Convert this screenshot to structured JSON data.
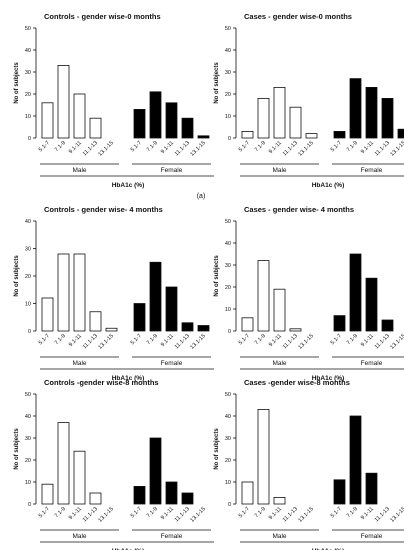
{
  "figure": {
    "panel_label": "(a)"
  },
  "colors": {
    "male": "#ffffff",
    "female": "#000000",
    "stroke": "#111111"
  },
  "chart_data": [
    {
      "type": "bar",
      "title": "Controls - gender wise-0 months",
      "ylabel": "No of subjects",
      "xlabel": "HbA1c (%)",
      "ylim": [
        0,
        50
      ],
      "yticks": [
        "0",
        "10",
        "20",
        "30",
        "40",
        "50"
      ],
      "categories": [
        "5.1-7",
        "7.1-9",
        "9.1-11",
        "11.1-13",
        "13.1-15"
      ],
      "series": [
        {
          "name": "Male",
          "values": [
            16,
            33,
            20,
            9,
            0
          ]
        },
        {
          "name": "Female",
          "values": [
            13,
            21,
            16,
            9,
            1
          ]
        }
      ]
    },
    {
      "type": "bar",
      "title": "Cases - gender wise-0 months",
      "ylabel": "No of subjects",
      "xlabel": "HbA1c (%)",
      "ylim": [
        0,
        50
      ],
      "yticks": [
        "0",
        "10",
        "20",
        "30",
        "40",
        "50"
      ],
      "categories": [
        "5.1-7",
        "7.1-9",
        "9.1-11",
        "11.1-13",
        "13.1-15"
      ],
      "series": [
        {
          "name": "Male",
          "values": [
            3,
            18,
            23,
            14,
            2
          ]
        },
        {
          "name": "Female",
          "values": [
            3,
            27,
            23,
            18,
            4
          ]
        }
      ]
    },
    {
      "type": "bar",
      "title": "Controls - gender wise- 4 months",
      "ylabel": "No of subjects",
      "xlabel": "HbA1c (%)",
      "ylim": [
        0,
        40
      ],
      "yticks": [
        "0",
        "10",
        "20",
        "30",
        "40"
      ],
      "categories": [
        "5.1-7",
        "7.1-9",
        "9.1-11",
        "11.1-13",
        "13.1-15"
      ],
      "series": [
        {
          "name": "Male",
          "values": [
            12,
            28,
            28,
            7,
            1
          ]
        },
        {
          "name": "Female",
          "values": [
            10,
            25,
            16,
            3,
            2
          ]
        }
      ]
    },
    {
      "type": "bar",
      "title": "Cases - gender wise- 4 months",
      "ylabel": "No of subjects",
      "xlabel": "HbA1c (%)",
      "ylim": [
        0,
        50
      ],
      "yticks": [
        "0",
        "10",
        "20",
        "30",
        "40",
        "50"
      ],
      "categories": [
        "5.1-7",
        "7.1-9",
        "9.1-11",
        "11.1-13",
        "13.1-15"
      ],
      "series": [
        {
          "name": "Male",
          "values": [
            6,
            32,
            19,
            1,
            0
          ]
        },
        {
          "name": "Female",
          "values": [
            7,
            35,
            24,
            5,
            0
          ]
        }
      ]
    },
    {
      "type": "bar",
      "title": "Controls -gender wise-8 months",
      "ylabel": "No of subjects",
      "xlabel": "HbA1c (%)",
      "ylim": [
        0,
        50
      ],
      "yticks": [
        "0",
        "10",
        "20",
        "30",
        "40",
        "50"
      ],
      "categories": [
        "5.1-7",
        "7.1-9",
        "9.1-11",
        "11.1-13",
        "13.1-15"
      ],
      "series": [
        {
          "name": "Male",
          "values": [
            9,
            37,
            24,
            5,
            0
          ]
        },
        {
          "name": "Female",
          "values": [
            8,
            30,
            10,
            5,
            0
          ]
        }
      ]
    },
    {
      "type": "bar",
      "title": "Cases -gender wise-8 months",
      "ylabel": "No of subjects",
      "xlabel": "HbA1c (%)",
      "ylim": [
        0,
        50
      ],
      "yticks": [
        "0",
        "10",
        "20",
        "30",
        "40",
        "50"
      ],
      "categories": [
        "5.1-7",
        "7.1-9",
        "9.1-11",
        "11.1-13",
        "13.1-15"
      ],
      "series": [
        {
          "name": "Male",
          "values": [
            10,
            43,
            3,
            0,
            0
          ]
        },
        {
          "name": "Female",
          "values": [
            11,
            40,
            14,
            0,
            0
          ]
        }
      ]
    }
  ]
}
